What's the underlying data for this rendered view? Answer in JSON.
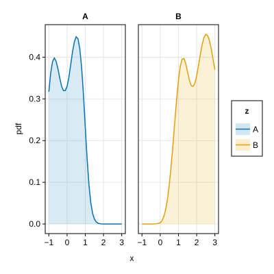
{
  "chart_data": {
    "type": "area",
    "xlabel": "x",
    "ylabel": "pdf",
    "xlim": [
      -1.2,
      3.2
    ],
    "ylim": [
      -0.023,
      0.478
    ],
    "x_ticks": [
      -1,
      0,
      1,
      2,
      3
    ],
    "x_tick_labels": [
      "−1",
      "0",
      "1",
      "2",
      "3"
    ],
    "y_ticks": [
      0.0,
      0.1,
      0.2,
      0.3,
      0.4
    ],
    "y_tick_labels": [
      "0.0",
      "0.1",
      "0.2",
      "0.3",
      "0.4"
    ],
    "grid": true,
    "legend": {
      "title": "z",
      "placement": "right",
      "entries": [
        {
          "label": "A",
          "color": "#0072B2"
        },
        {
          "label": "B",
          "color": "#E69F00"
        }
      ]
    },
    "panels": [
      {
        "title": "A",
        "series": {
          "name": "A",
          "color": "#0072B2",
          "x": [
            -1.0,
            -0.9,
            -0.8,
            -0.7,
            -0.6,
            -0.5,
            -0.4,
            -0.3,
            -0.2,
            -0.1,
            0.0,
            0.1,
            0.2,
            0.3,
            0.4,
            0.5,
            0.6,
            0.7,
            0.8,
            0.9,
            1.0,
            1.1,
            1.2,
            1.3,
            1.4,
            1.5,
            1.6,
            1.7,
            1.8,
            1.9,
            2.0,
            2.2,
            2.4,
            2.6,
            2.8,
            3.0
          ],
          "y": [
            0.317,
            0.362,
            0.389,
            0.398,
            0.39,
            0.372,
            0.35,
            0.33,
            0.32,
            0.32,
            0.33,
            0.352,
            0.382,
            0.413,
            0.437,
            0.449,
            0.444,
            0.42,
            0.375,
            0.31,
            0.232,
            0.157,
            0.095,
            0.052,
            0.026,
            0.012,
            0.005,
            0.002,
            0.0007,
            0.0002,
            0.0,
            0.0,
            0.0,
            0.0,
            0.0,
            0.0
          ]
        }
      },
      {
        "title": "B",
        "series": {
          "name": "B",
          "color": "#E69F00",
          "x": [
            -1.0,
            -0.8,
            -0.6,
            -0.4,
            -0.2,
            0.0,
            0.1,
            0.2,
            0.3,
            0.4,
            0.5,
            0.6,
            0.7,
            0.8,
            0.9,
            1.0,
            1.1,
            1.2,
            1.3,
            1.4,
            1.5,
            1.6,
            1.7,
            1.8,
            1.9,
            2.0,
            2.1,
            2.2,
            2.3,
            2.4,
            2.5,
            2.6,
            2.7,
            2.8,
            2.9,
            3.0
          ],
          "y": [
            0.0,
            0.0,
            0.0,
            0.0,
            0.0005,
            0.003,
            0.008,
            0.018,
            0.035,
            0.06,
            0.095,
            0.14,
            0.19,
            0.245,
            0.298,
            0.345,
            0.378,
            0.395,
            0.397,
            0.385,
            0.365,
            0.345,
            0.332,
            0.33,
            0.337,
            0.355,
            0.38,
            0.406,
            0.43,
            0.447,
            0.455,
            0.452,
            0.44,
            0.42,
            0.395,
            0.37
          ]
        }
      }
    ]
  }
}
